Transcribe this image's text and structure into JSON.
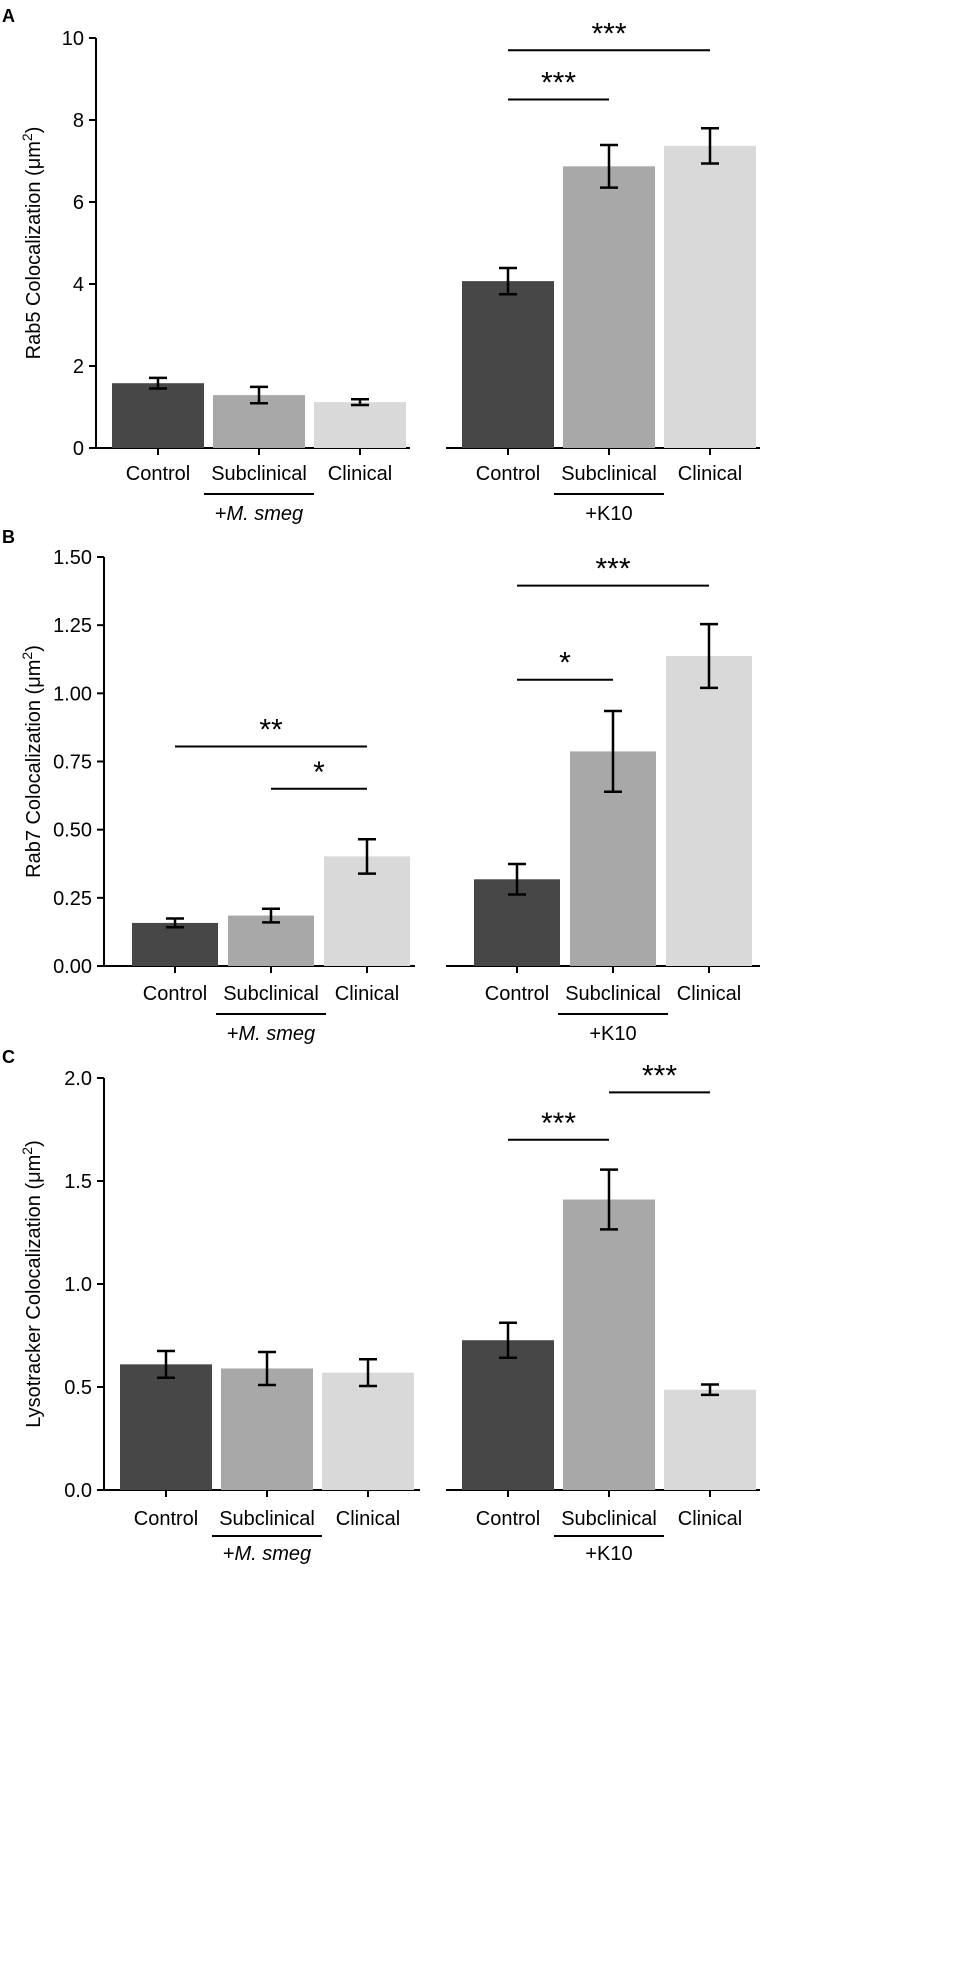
{
  "colors": {
    "control": "#474747",
    "subclinical": "#a8a8a8",
    "clinical": "#d9d9d9"
  },
  "chart_data": [
    {
      "type": "bar",
      "panel_label": "A",
      "ylabel_text": "Rab5 Colocalization (μm",
      "ylabel_sup": "2",
      "ylabel_close": ")",
      "ylim": [
        0,
        10
      ],
      "yticks": [
        "0",
        "2",
        "4",
        "6",
        "8",
        "10"
      ],
      "groups": [
        {
          "name": "+M. smeg",
          "label_prefix": "+",
          "label_italic": "M. smeg",
          "categories": [
            "Control",
            "Subclinical",
            "Clinical"
          ],
          "values": [
            1.58,
            1.29,
            1.12
          ],
          "errors": [
            0.13,
            0.2,
            0.07
          ],
          "significance": []
        },
        {
          "name": "+K10",
          "label_prefix": "+K10",
          "label_italic": "",
          "categories": [
            "Control",
            "Subclinical",
            "Clinical"
          ],
          "values": [
            4.07,
            6.87,
            7.37
          ],
          "errors": [
            0.32,
            0.52,
            0.43
          ],
          "significance": [
            {
              "from": 0,
              "to": 1,
              "level": 8.5,
              "label": "***"
            },
            {
              "from": 0,
              "to": 2,
              "level": 9.7,
              "label": "***"
            }
          ]
        }
      ]
    },
    {
      "type": "bar",
      "panel_label": "B",
      "ylabel_text": "Rab7 Colocalization (μm",
      "ylabel_sup": "2",
      "ylabel_close": ")",
      "ylim": [
        0,
        1.5
      ],
      "yticks": [
        "0.00",
        "0.25",
        "0.50",
        "0.75",
        "1.00",
        "1.25",
        "1.50"
      ],
      "groups": [
        {
          "name": "+M. smeg",
          "label_prefix": "+",
          "label_italic": "M. smeg",
          "categories": [
            "Control",
            "Subclinical",
            "Clinical"
          ],
          "values": [
            0.158,
            0.185,
            0.402
          ],
          "errors": [
            0.016,
            0.025,
            0.063
          ],
          "significance": [
            {
              "from": 1,
              "to": 2,
              "level": 0.65,
              "label": "*"
            },
            {
              "from": 0,
              "to": 2,
              "level": 0.805,
              "label": "**"
            }
          ]
        },
        {
          "name": "+K10",
          "label_prefix": "+K10",
          "label_italic": "",
          "categories": [
            "Control",
            "Subclinical",
            "Clinical"
          ],
          "values": [
            0.318,
            0.787,
            1.137
          ],
          "errors": [
            0.056,
            0.148,
            0.117
          ],
          "significance": [
            {
              "from": 0,
              "to": 1,
              "level": 1.05,
              "label": "*"
            },
            {
              "from": 0,
              "to": 2,
              "level": 1.395,
              "label": "***"
            }
          ]
        }
      ]
    },
    {
      "type": "bar",
      "panel_label": "C",
      "ylabel_text": "Lysotracker Colocalization (μm",
      "ylabel_sup": "2",
      "ylabel_close": ")",
      "ylim": [
        0,
        2
      ],
      "yticks": [
        "0.0",
        "0.5",
        "1.0",
        "1.5",
        "2.0"
      ],
      "groups": [
        {
          "name": "+M. smeg",
          "label_prefix": "+",
          "label_italic": "M. smeg",
          "categories": [
            "Control",
            "Subclinical",
            "Clinical"
          ],
          "values": [
            0.61,
            0.59,
            0.57
          ],
          "errors": [
            0.065,
            0.08,
            0.065
          ],
          "significance": []
        },
        {
          "name": "+K10",
          "label_prefix": "+K10",
          "label_italic": "",
          "categories": [
            "Control",
            "Subclinical",
            "Clinical"
          ],
          "values": [
            0.727,
            1.41,
            0.487
          ],
          "errors": [
            0.085,
            0.145,
            0.025
          ],
          "significance": [
            {
              "from": 0,
              "to": 1,
              "level": 1.7,
              "label": "***"
            },
            {
              "from": 1,
              "to": 2,
              "level": 1.93,
              "label": "***"
            }
          ]
        }
      ]
    }
  ]
}
